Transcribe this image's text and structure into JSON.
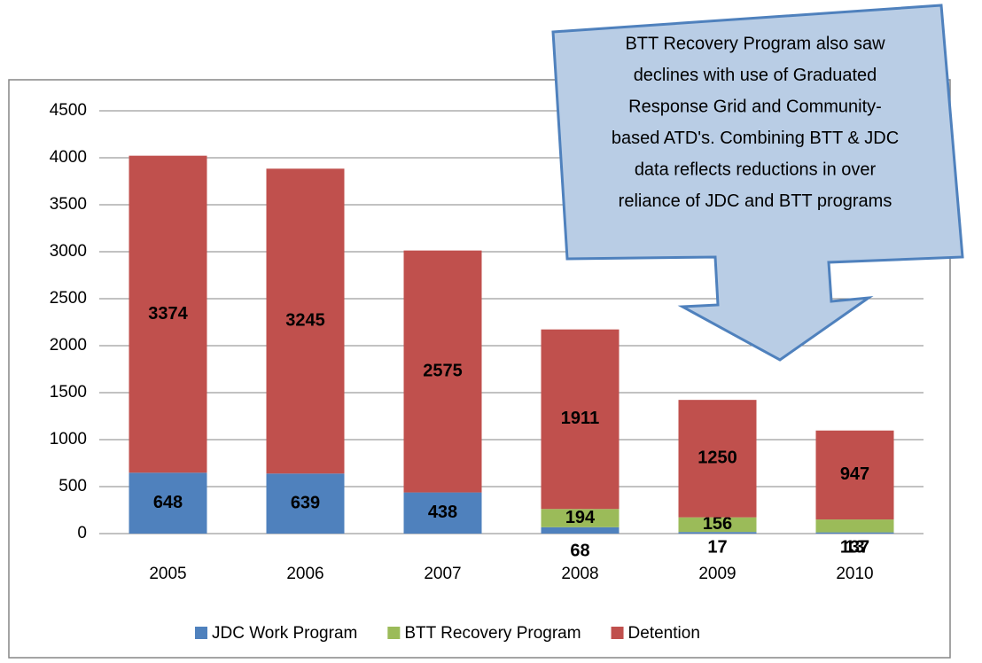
{
  "chart_data": {
    "type": "stacked_bar",
    "categories": [
      "2005",
      "2006",
      "2007",
      "2008",
      "2009",
      "2010"
    ],
    "series": [
      {
        "name": "JDC Work Program",
        "color": "#4f81bd",
        "values": [
          648,
          639,
          438,
          68,
          17,
          13
        ]
      },
      {
        "name": "BTT Recovery Program",
        "color": "#9bbb59",
        "values": [
          null,
          null,
          null,
          194,
          156,
          137
        ]
      },
      {
        "name": "Detention",
        "color": "#c0504d",
        "values": [
          3374,
          3245,
          2575,
          1911,
          1250,
          947
        ]
      }
    ],
    "ylim": [
      0,
      4500
    ],
    "yticks": [
      0,
      500,
      1000,
      1500,
      2000,
      2500,
      3000,
      3500,
      4000,
      4500
    ],
    "grid": true,
    "legend": "bottom",
    "annotation": [
      "BTT Recovery Program also saw",
      "declines  with use of Graduated",
      "Response Grid and Community-",
      "based ATD's.  Combining BTT & JDC",
      "data reflects reductions  in over",
      "reliance of JDC and BTT programs"
    ]
  }
}
